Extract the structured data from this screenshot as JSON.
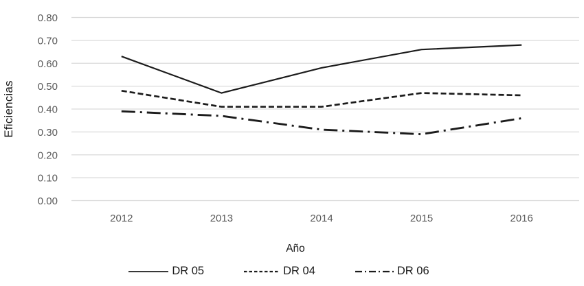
{
  "chart_data": {
    "type": "line",
    "title": "",
    "xlabel": "Año",
    "ylabel": "Eficiencias",
    "categories": [
      "2012",
      "2013",
      "2014",
      "2015",
      "2016"
    ],
    "series": [
      {
        "name": "DR 05",
        "style": "solid",
        "values": [
          0.63,
          0.47,
          0.58,
          0.66,
          0.68
        ]
      },
      {
        "name": "DR 04",
        "style": "dashed",
        "values": [
          0.48,
          0.41,
          0.41,
          0.47,
          0.46
        ]
      },
      {
        "name": "DR 06",
        "style": "dashdot",
        "values": [
          0.39,
          0.37,
          0.31,
          0.29,
          0.36
        ]
      }
    ],
    "ylim": [
      0.0,
      0.8
    ],
    "ytick_step": 0.1,
    "ytick_labels": [
      "0.00",
      "0.10",
      "0.20",
      "0.30",
      "0.40",
      "0.50",
      "0.60",
      "0.70",
      "0.80"
    ],
    "grid": "horizontal",
    "legend_position": "bottom",
    "colors": {
      "line": "#1c1c1c",
      "grid": "#d9d9d9",
      "tick_label": "#595959",
      "axis_label": "#1a1a1a"
    }
  }
}
